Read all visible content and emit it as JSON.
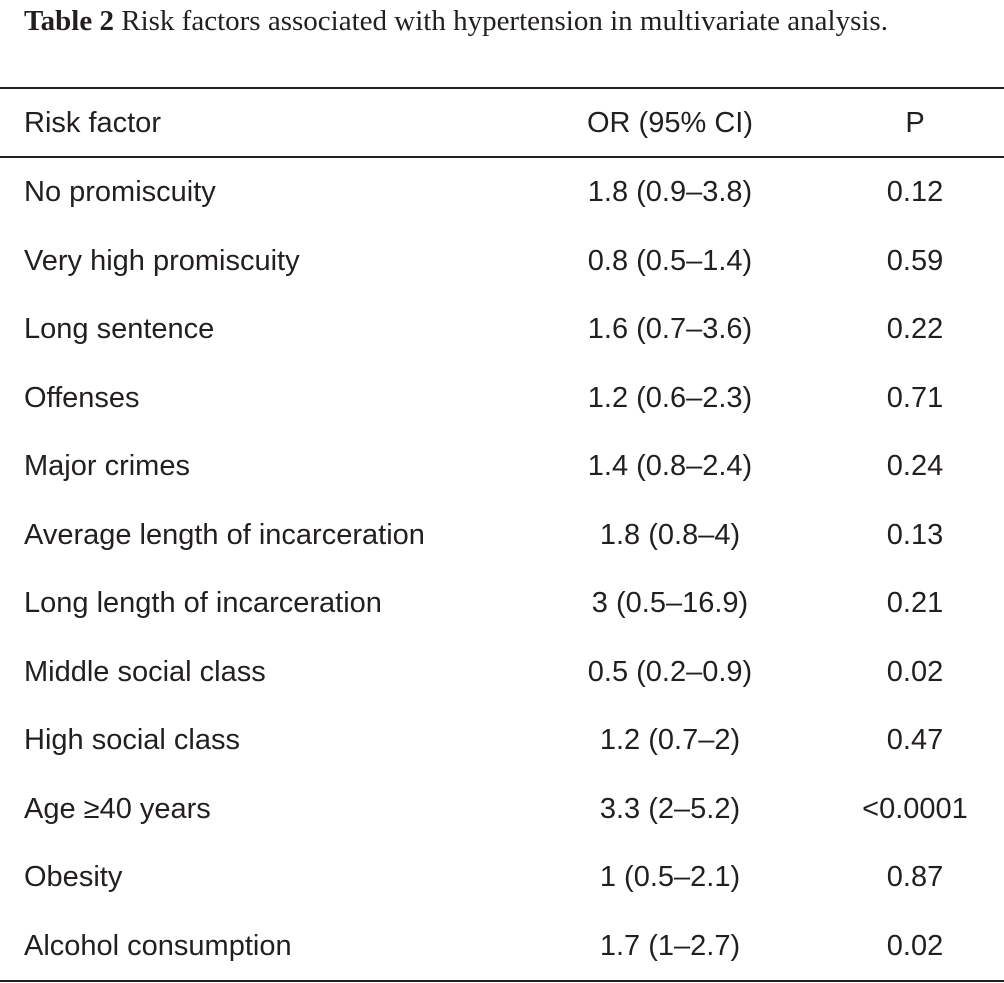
{
  "caption": {
    "label": "Table 2",
    "text": "Risk factors associated with hypertension in multivariate analysis."
  },
  "table": {
    "headers": {
      "factor": "Risk factor",
      "or": "OR (95% CI)",
      "p": "P"
    },
    "rows": [
      {
        "factor": "No promiscuity",
        "or": "1.8 (0.9–3.8)",
        "p": "0.12"
      },
      {
        "factor": "Very high promiscuity",
        "or": "0.8 (0.5–1.4)",
        "p": "0.59"
      },
      {
        "factor": "Long sentence",
        "or": "1.6 (0.7–3.6)",
        "p": "0.22"
      },
      {
        "factor": "Offenses",
        "or": "1.2 (0.6–2.3)",
        "p": "0.71"
      },
      {
        "factor": "Major crimes",
        "or": "1.4 (0.8–2.4)",
        "p": "0.24"
      },
      {
        "factor": "Average length of incarceration",
        "or": "1.8 (0.8–4)",
        "p": "0.13"
      },
      {
        "factor": "Long length of incarceration",
        "or": "3 (0.5–16.9)",
        "p": "0.21"
      },
      {
        "factor": "Middle social class",
        "or": "0.5 (0.2–0.9)",
        "p": "0.02"
      },
      {
        "factor": "High social class",
        "or": "1.2 (0.7–2)",
        "p": "0.47"
      },
      {
        "factor": "Age ≥40 years",
        "or": "3.3 (2–5.2)",
        "p": "<0.0001"
      },
      {
        "factor": "Obesity",
        "or": "1 (0.5–2.1)",
        "p": "0.87"
      },
      {
        "factor": "Alcohol consumption",
        "or": "1.7 (1–2.7)",
        "p": "0.02"
      }
    ]
  }
}
